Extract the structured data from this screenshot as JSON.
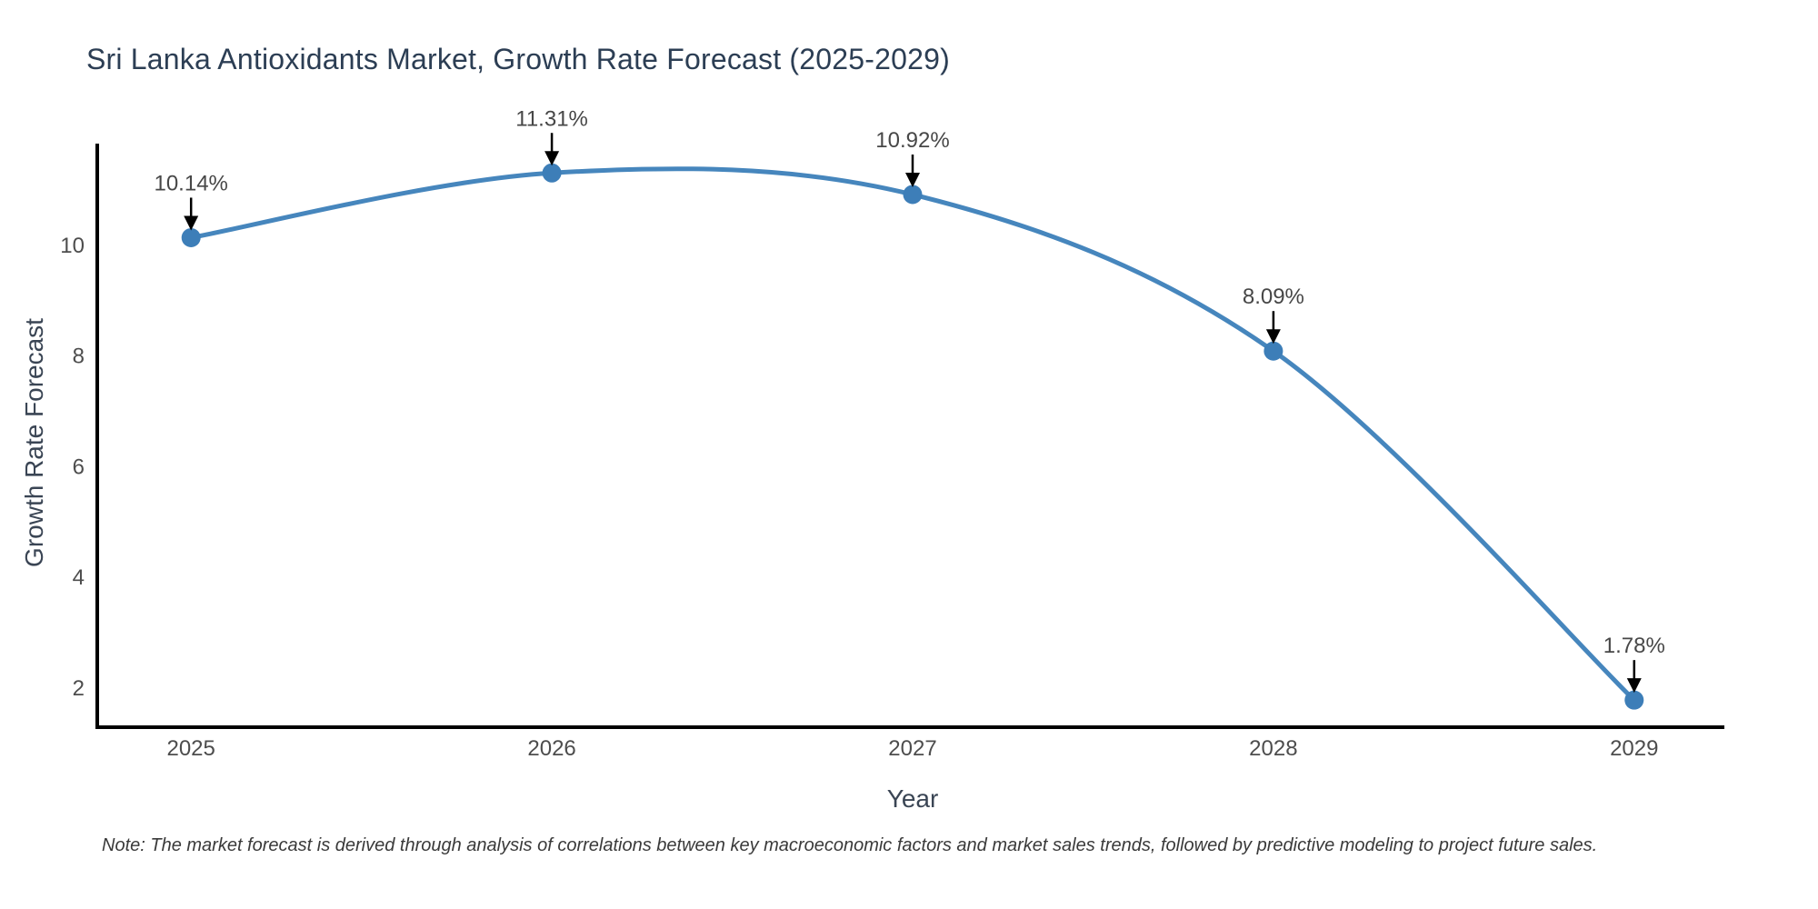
{
  "footnote": "Note: The market forecast is derived through analysis of correlations between key macroeconomic factors and market sales trends, followed by predictive modeling to project future sales.",
  "chart_data": {
    "type": "line",
    "title": "Sri Lanka Antioxidants Market, Growth Rate Forecast (2025-2029)",
    "xlabel": "Year",
    "ylabel": "Growth Rate Forecast",
    "x": [
      2025,
      2026,
      2027,
      2028,
      2029
    ],
    "series": [
      {
        "name": "Growth Rate Forecast",
        "values": [
          10.14,
          11.31,
          10.92,
          8.09,
          1.78
        ]
      }
    ],
    "point_labels": [
      "10.14%",
      "11.31%",
      "10.92%",
      "8.09%",
      "1.78%"
    ],
    "line_shape": "spline",
    "markers": true,
    "grid": false,
    "legend": "none",
    "yticks": [
      2,
      4,
      6,
      8,
      10
    ],
    "xlim": [
      2024.74,
      2029.25
    ],
    "ylim": [
      1.29,
      11.84
    ],
    "annotation_arrows": true,
    "colors": {
      "line": "#4686bd",
      "marker": "#3d7eb8",
      "axis": "#000000",
      "title": "#2c3e54",
      "axis_title": "#3a4554",
      "tick": "#4d4d4d",
      "annotation": "#474747",
      "arrow": "#000000",
      "note": "#3a3a3a",
      "background": "#ffffff"
    }
  }
}
